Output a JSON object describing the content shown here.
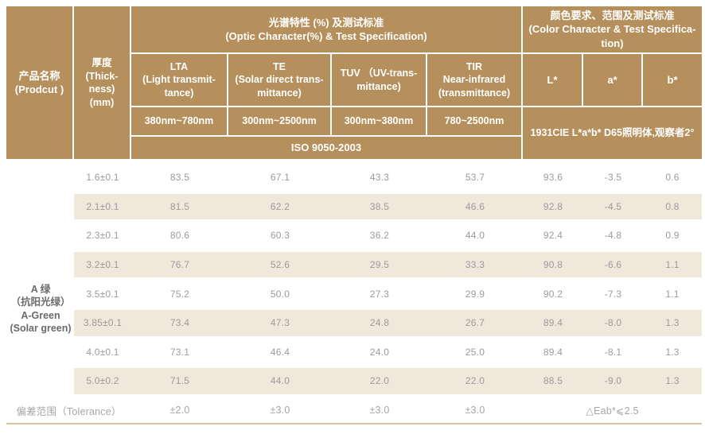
{
  "table": {
    "header": {
      "product_col": "产品名称\n(Prodcut )",
      "thickness_col": "厚度\n(Thick-\nness)\n(mm)",
      "optic_group": "光谱特性 (%) 及测试标准\n(Optic Character(%) & Test Specification)",
      "color_group": "颜色要求、范围及测试标准\n(Color Character & Test Specifica-\ntion)",
      "lta_label": "LTA\n(Light transmit-\ntance)",
      "te_label": "TE\n(Solar direct trans-\nmittance)",
      "tuv_label": "TUV （UV-trans-\nmittance)",
      "tir_label": "TIR\nNear-infrared\n(transmittance)",
      "l_label": "L*",
      "a_label": "a*",
      "b_label": "b*",
      "lta_range": "380nm~780nm",
      "te_range": "300nm~2500nm",
      "tuv_range": "300nm~380nm",
      "tir_range": "780~2500nm",
      "optic_standard": "ISO 9050-2003",
      "color_standard": "1931CIE L*a*b*  D65照明体,观察者2°"
    },
    "product_name": "A 绿\n（抗阳光绿）\nA-Green\n(Solar green)",
    "rows": [
      {
        "thickness": "1.6±0.1",
        "lta": "83.5",
        "te": "67.1",
        "tuv": "43.3",
        "tir": "53.7",
        "l": "93.6",
        "a": "-3.5",
        "b": "0.6"
      },
      {
        "thickness": "2.1±0.1",
        "lta": "81.5",
        "te": "62.2",
        "tuv": "38.5",
        "tir": "46.6",
        "l": "92.8",
        "a": "-4.5",
        "b": "0.8"
      },
      {
        "thickness": "2.3±0.1",
        "lta": "80.6",
        "te": "60.3",
        "tuv": "36.2",
        "tir": "44.0",
        "l": "92.4",
        "a": "-4.8",
        "b": "0.9"
      },
      {
        "thickness": "3.2±0.1",
        "lta": "76.7",
        "te": "52.6",
        "tuv": "29.5",
        "tir": "33.3",
        "l": "90.8",
        "a": "-6.6",
        "b": "1.1"
      },
      {
        "thickness": "3.5±0.1",
        "lta": "75.2",
        "te": "50.0",
        "tuv": "27.3",
        "tir": "29.9",
        "l": "90.2",
        "a": "-7.3",
        "b": "1.1"
      },
      {
        "thickness": "3.85±0.1",
        "lta": "73.4",
        "te": "47.3",
        "tuv": "24.8",
        "tir": "26.7",
        "l": "89.4",
        "a": "-8.0",
        "b": "1.3"
      },
      {
        "thickness": "4.0±0.1",
        "lta": "73.1",
        "te": "46.4",
        "tuv": "24.0",
        "tir": "25.0",
        "l": "89.4",
        "a": "-8.1",
        "b": "1.3"
      },
      {
        "thickness": "5.0±0.2",
        "lta": "71.5",
        "te": "44.0",
        "tuv": "22.0",
        "tir": "22.0",
        "l": "88.5",
        "a": "-9.0",
        "b": "1.3"
      }
    ],
    "tolerance": {
      "label": "偏差范围（Tolerance）",
      "lta": "±2.0",
      "te": "±3.0",
      "tuv": "±3.0",
      "tir": "±3.0",
      "lab": "△Eab*⩽2.5"
    }
  },
  "colors": {
    "header_bg": "#b6905c",
    "row_shade": "#f0e8db",
    "body_text": "#9b9b9b",
    "bottom_rule": "#dcc39a"
  }
}
